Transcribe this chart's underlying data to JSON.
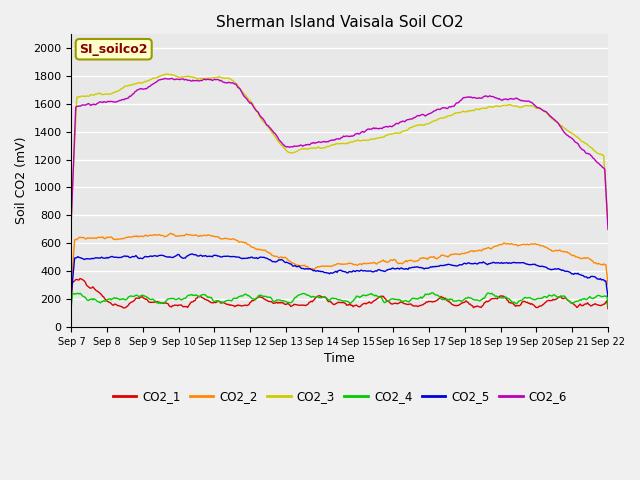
{
  "title": "Sherman Island Vaisala Soil CO2",
  "ylabel": "Soil CO2 (mV)",
  "xlabel": "Time",
  "legend_label": "SI_soilco2",
  "ylim": [
    0,
    2100
  ],
  "yticks": [
    0,
    200,
    400,
    600,
    800,
    1000,
    1200,
    1400,
    1600,
    1800,
    2000
  ],
  "series_colors": {
    "CO2_1": "#dd0000",
    "CO2_2": "#ff8800",
    "CO2_3": "#cccc00",
    "CO2_4": "#00cc00",
    "CO2_5": "#0000dd",
    "CO2_6": "#bb00bb"
  },
  "n_points": 500,
  "background_color": "#e8e8e8",
  "fig_background": "#f0f0f0",
  "grid_color": "#ffffff"
}
